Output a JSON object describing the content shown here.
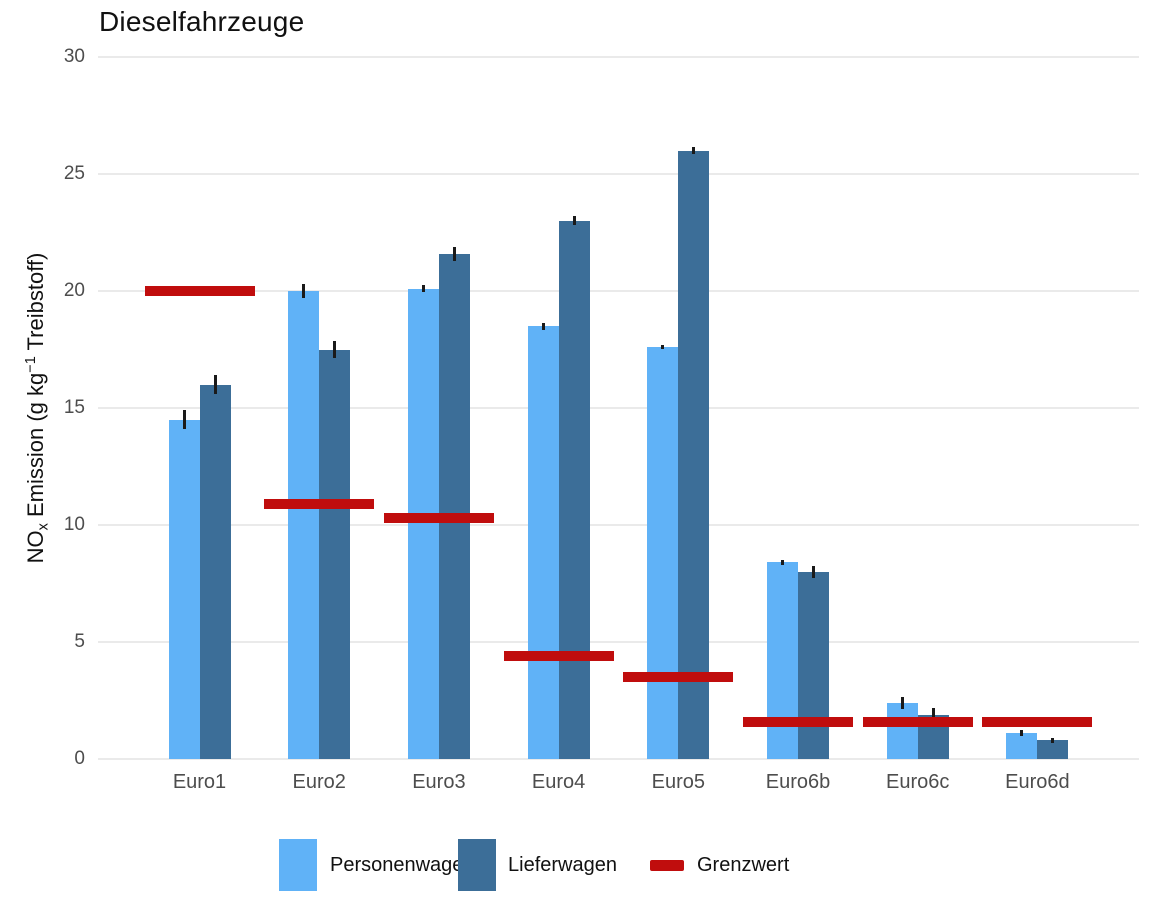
{
  "chart_data": {
    "type": "bar",
    "title": "Dieselfahrzeuge",
    "ylabel": {
      "pre": "NO",
      "sub": "x",
      "mid": " Emission (g kg",
      "sup": "−1",
      "post": " Treibstoff)"
    },
    "categories": [
      "Euro1",
      "Euro2",
      "Euro3",
      "Euro4",
      "Euro5",
      "Euro6b",
      "Euro6c",
      "Euro6d"
    ],
    "series": [
      {
        "name": "Personenwagen",
        "color": "#60B2F7",
        "values": [
          14.5,
          20.0,
          20.1,
          18.5,
          17.6,
          8.4,
          2.4,
          1.1
        ],
        "errors": [
          0.4,
          0.3,
          0.15,
          0.15,
          0.1,
          0.12,
          0.25,
          0.12
        ]
      },
      {
        "name": "Lieferwagen",
        "color": "#3C6E98",
        "values": [
          16.0,
          17.5,
          21.6,
          23.0,
          26.0,
          8.0,
          1.9,
          0.8
        ],
        "errors": [
          0.4,
          0.35,
          0.3,
          0.2,
          0.15,
          0.25,
          0.3,
          0.1
        ]
      }
    ],
    "limit_series": {
      "name": "Grenzwert",
      "color": "#C00D0D",
      "values": [
        20.0,
        10.9,
        10.3,
        4.4,
        3.5,
        1.6,
        1.6,
        1.6
      ]
    },
    "yticks": [
      0,
      5,
      10,
      15,
      20,
      25,
      30
    ],
    "ylim": [
      0,
      30
    ],
    "grid": true,
    "grid_color": "#EAEAEA",
    "error_bar_color": "#1A1A1A",
    "tick_label_color": "#4D4D4D",
    "background": "#FFFFFF",
    "legend_position": "bottom"
  }
}
